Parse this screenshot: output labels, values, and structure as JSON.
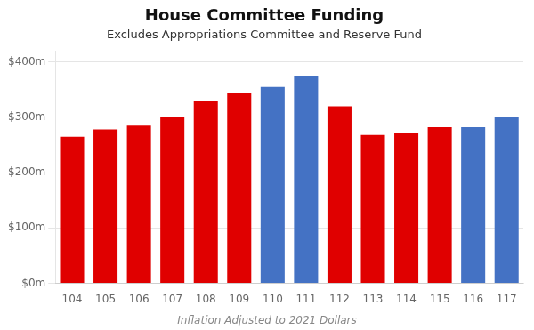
{
  "chart_data": {
    "type": "bar",
    "title": "House Committee Funding",
    "subtitle": "Excludes Appropriations Committee and Reserve Fund",
    "footnote": "Inflation Adjusted to 2021 Dollars",
    "categories": [
      "104",
      "105",
      "106",
      "107",
      "108",
      "109",
      "110",
      "111",
      "112",
      "113",
      "114",
      "115",
      "116",
      "117"
    ],
    "values": [
      265,
      278,
      285,
      300,
      330,
      345,
      355,
      375,
      320,
      268,
      272,
      282,
      282,
      300
    ],
    "colors": [
      "#e00000",
      "#e00000",
      "#e00000",
      "#e00000",
      "#e00000",
      "#e00000",
      "#4472c4",
      "#4472c4",
      "#e00000",
      "#e00000",
      "#e00000",
      "#e00000",
      "#4472c4",
      "#4472c4"
    ],
    "ylim": [
      0,
      420
    ],
    "yticks": [
      {
        "value": 0,
        "label": "$0m"
      },
      {
        "value": 100,
        "label": "$100m"
      },
      {
        "value": 200,
        "label": "$200m"
      },
      {
        "value": 300,
        "label": "$300m"
      },
      {
        "value": 400,
        "label": "$400m"
      }
    ],
    "grid": true
  }
}
